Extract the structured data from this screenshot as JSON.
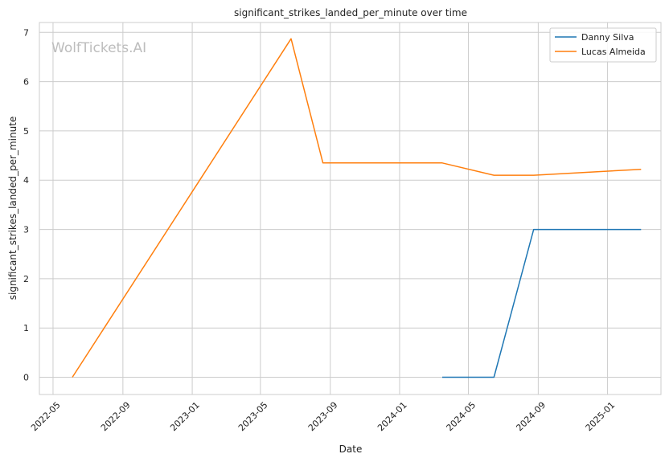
{
  "chart_data": {
    "type": "line",
    "title": "significant_strikes_landed_per_minute over time",
    "xlabel": "Date",
    "ylabel": "significant_strikes_landed_per_minute",
    "watermark": "WolfTickets.AI",
    "x_axis": {
      "type": "date",
      "range": [
        "2022-04-07",
        "2025-04-05"
      ],
      "ticks": [
        "2022-05-01",
        "2022-09-01",
        "2023-01-01",
        "2023-05-01",
        "2023-09-01",
        "2024-01-01",
        "2024-05-01",
        "2024-09-01",
        "2025-01-01"
      ],
      "tick_labels": [
        "2022-05",
        "2022-09",
        "2023-01",
        "2023-05",
        "2023-09",
        "2024-01",
        "2024-05",
        "2024-09",
        "2025-01"
      ]
    },
    "y_axis": {
      "range": [
        -0.35,
        7.2
      ],
      "ticks": [
        0,
        1,
        2,
        3,
        4,
        5,
        6,
        7
      ]
    },
    "grid": true,
    "legend_position": "top-right",
    "series": [
      {
        "name": "Danny Silva",
        "color": "#1f77b4",
        "points": [
          {
            "x": "2024-03-16",
            "y": 0
          },
          {
            "x": "2024-06-15",
            "y": 0
          },
          {
            "x": "2024-08-24",
            "y": 3
          },
          {
            "x": "2025-03-01",
            "y": 3
          }
        ]
      },
      {
        "name": "Lucas Almeida",
        "color": "#ff7f0e",
        "points": [
          {
            "x": "2022-06-04",
            "y": 0
          },
          {
            "x": "2023-06-24",
            "y": 6.87
          },
          {
            "x": "2023-08-19",
            "y": 4.35
          },
          {
            "x": "2024-03-16",
            "y": 4.35
          },
          {
            "x": "2024-06-15",
            "y": 4.1
          },
          {
            "x": "2024-08-24",
            "y": 4.1
          },
          {
            "x": "2025-03-01",
            "y": 4.22
          }
        ]
      }
    ]
  }
}
